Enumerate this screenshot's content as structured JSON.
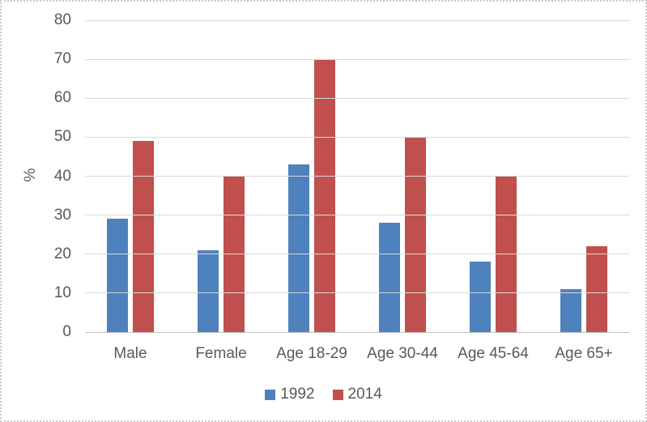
{
  "chart_data": {
    "type": "bar",
    "categories": [
      "Male",
      "Female",
      "Age 18-29",
      "Age 30-44",
      "Age 45-64",
      "Age 65+"
    ],
    "series": [
      {
        "name": "1992",
        "color": "#4F81BD",
        "values": [
          29,
          21,
          43,
          28,
          18,
          11
        ]
      },
      {
        "name": "2014",
        "color": "#C0504D",
        "values": [
          49,
          40,
          70,
          50,
          40,
          22
        ]
      }
    ],
    "title": "",
    "xlabel": "",
    "ylabel": "%",
    "ylim": [
      0,
      80
    ],
    "ytick_step": 10,
    "yticks": [
      0,
      10,
      20,
      30,
      40,
      50,
      60,
      70,
      80
    ],
    "grid": true,
    "legend_position": "bottom"
  },
  "colors": {
    "background": "#FFFFFF",
    "text": "#595959",
    "gridline": "#D9D9D9",
    "axis_line": "#C3C3C3",
    "canvas_border": "#C9C9C9",
    "series_1992": "#4F81BD",
    "series_2014": "#C0504D"
  }
}
